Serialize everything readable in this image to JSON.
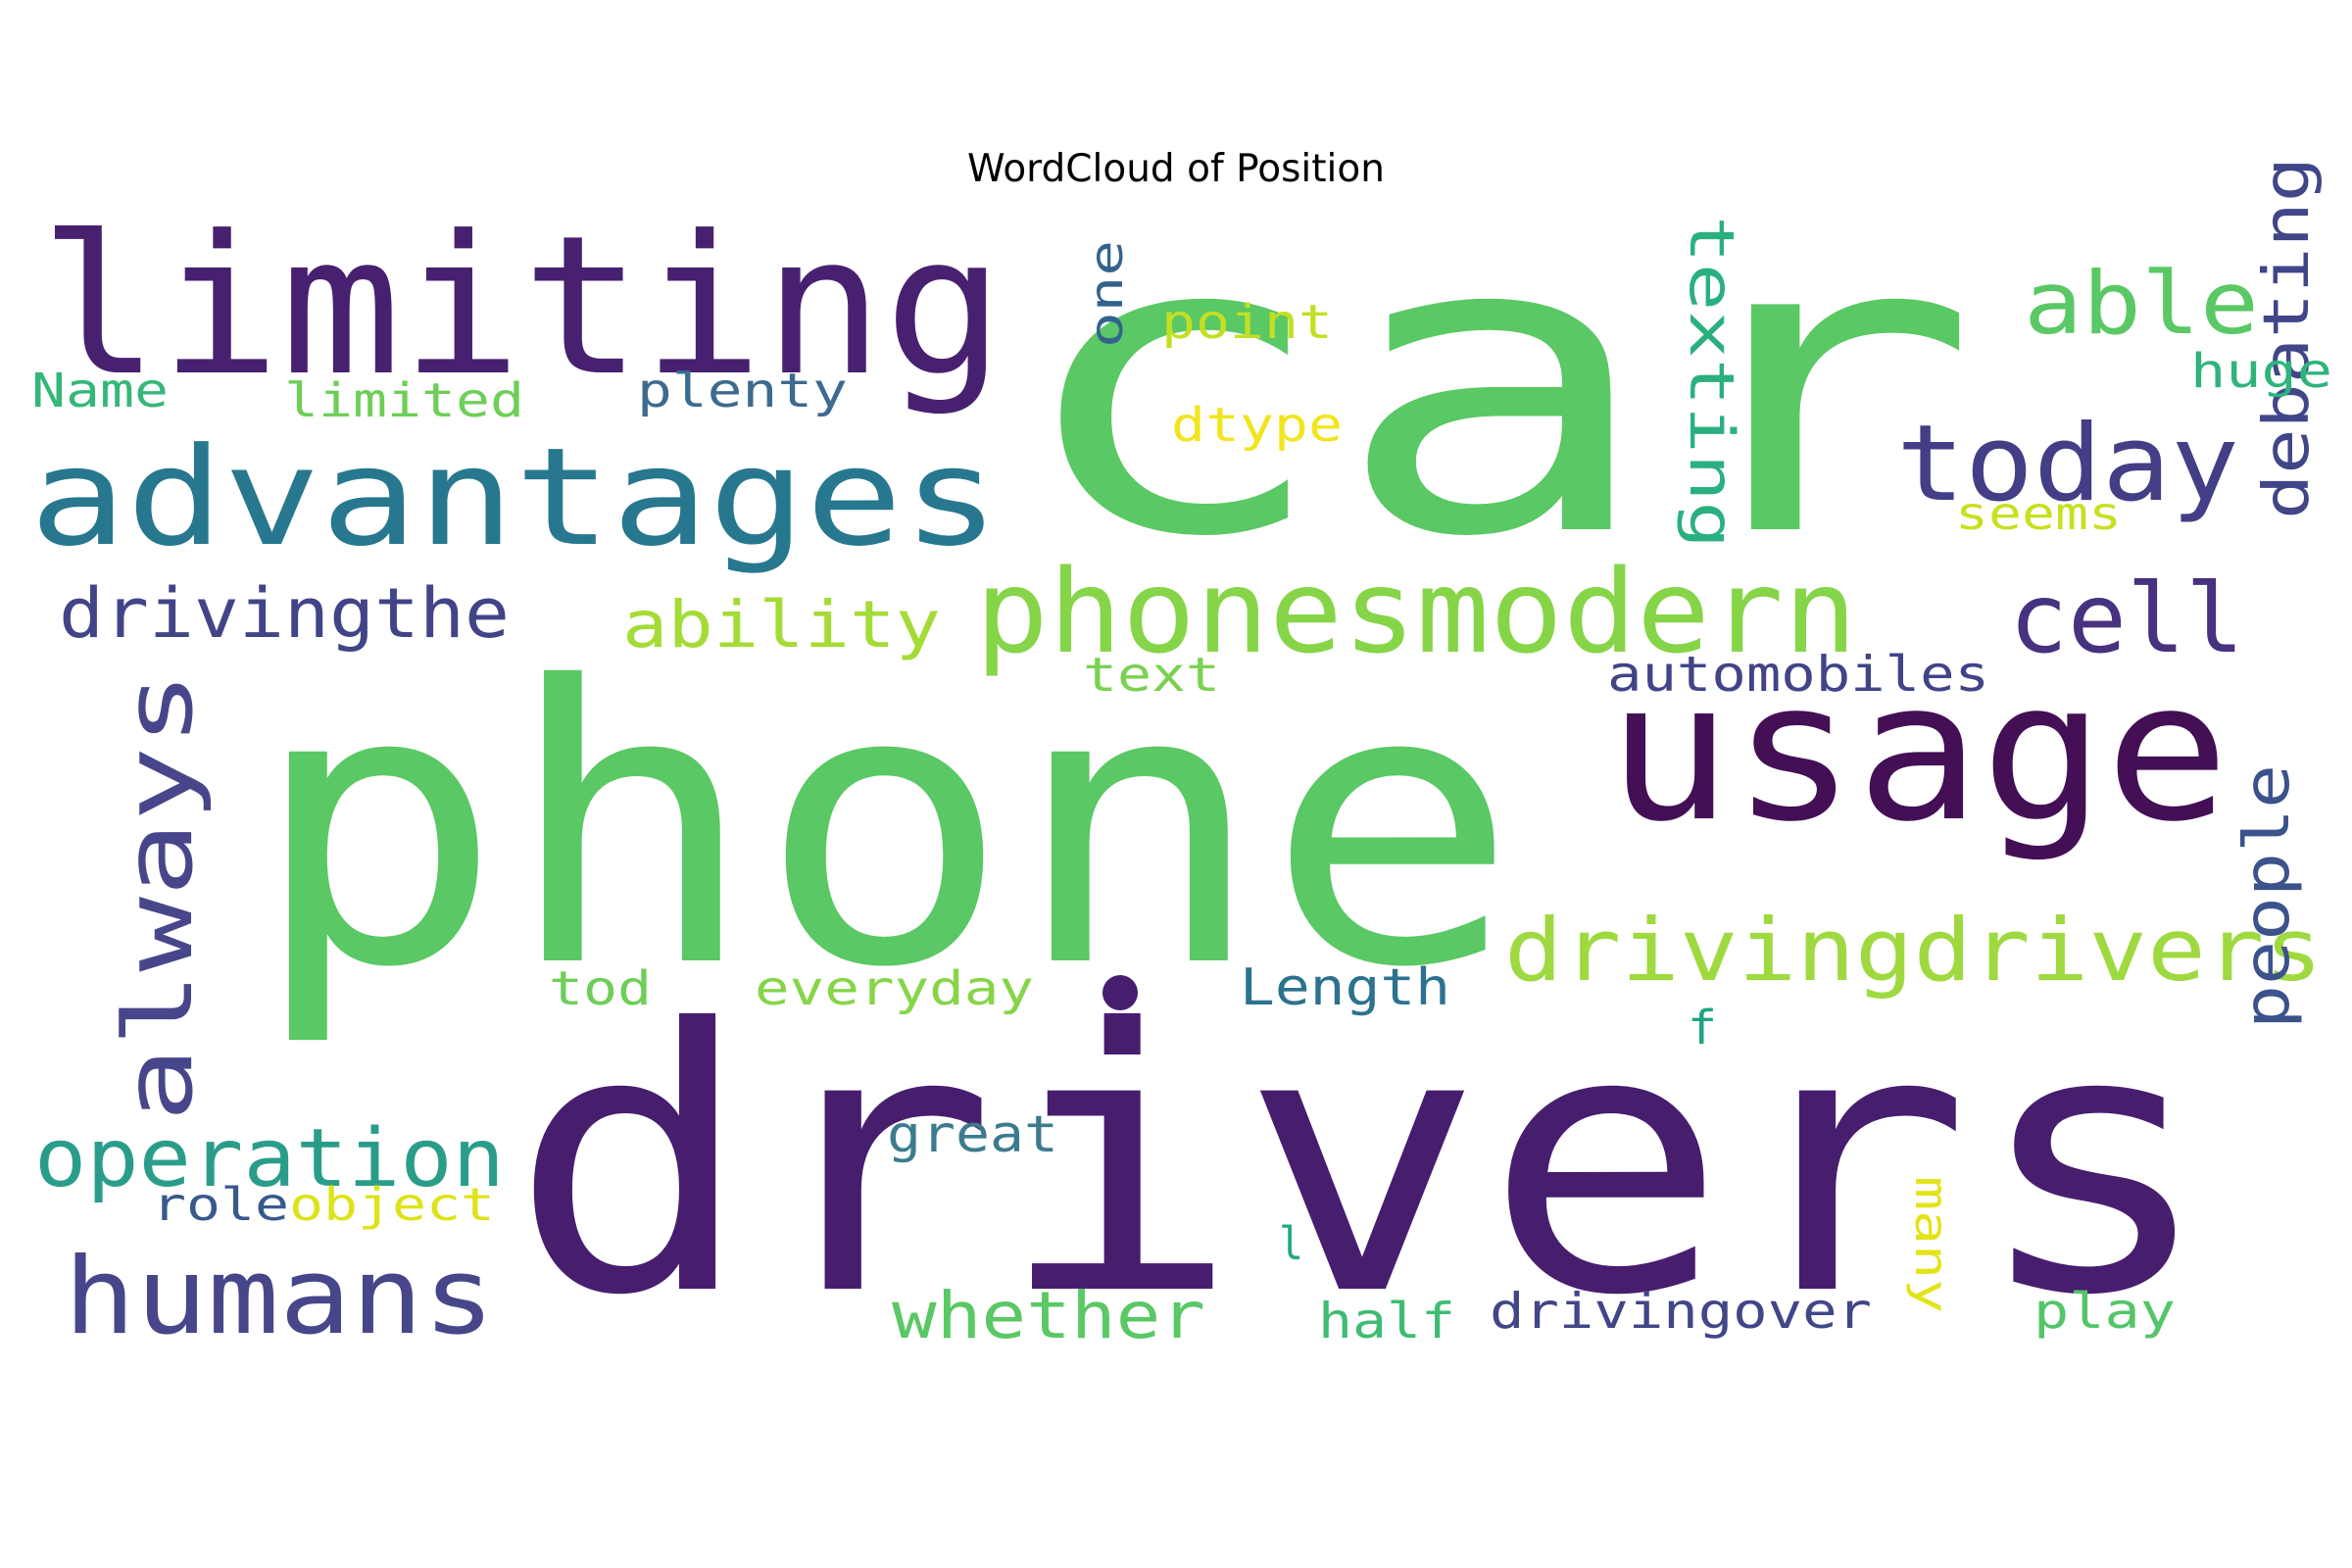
{
  "figure": {
    "title": "WordCloud of Position",
    "background": "#ffffff"
  },
  "palette": "viridis",
  "words": [
    {
      "text": "car",
      "color": "#5ac864"
    },
    {
      "text": "phone",
      "color": "#5ac864"
    },
    {
      "text": "drivers",
      "color": "#471e6e"
    },
    {
      "text": "limiting",
      "color": "#482070"
    },
    {
      "text": "advantages",
      "color": "#27788e"
    },
    {
      "text": "usage",
      "color": "#440f55"
    },
    {
      "text": "phonesmodern",
      "color": "#86d549"
    },
    {
      "text": "drivingdrivers",
      "color": "#9fd940"
    },
    {
      "text": "today",
      "color": "#433e85"
    },
    {
      "text": "cell",
      "color": "#46327e"
    },
    {
      "text": "humans",
      "color": "#48468a"
    },
    {
      "text": "operation",
      "color": "#2a9d8a"
    },
    {
      "text": "always",
      "color": "#48468a"
    },
    {
      "text": "able",
      "color": "#5ac864"
    },
    {
      "text": "texting",
      "color": "#2ab07f"
    },
    {
      "text": "debating",
      "color": "#404688"
    },
    {
      "text": "people",
      "color": "#3b528b"
    },
    {
      "text": "drivingthe",
      "color": "#414487"
    },
    {
      "text": "ability",
      "color": "#a5db36"
    },
    {
      "text": "whether",
      "color": "#5ac864"
    },
    {
      "text": "automobiles",
      "color": "#414487"
    },
    {
      "text": "point",
      "color": "#c2df23"
    },
    {
      "text": "dtype",
      "color": "#f1e51d"
    },
    {
      "text": "plenty",
      "color": "#3d6a8e"
    },
    {
      "text": "limited",
      "color": "#6ece58"
    },
    {
      "text": "Name",
      "color": "#35b779"
    },
    {
      "text": "huge",
      "color": "#2eb37c"
    },
    {
      "text": "seems",
      "color": "#c8e020"
    },
    {
      "text": "one",
      "color": "#33638d"
    },
    {
      "text": "text",
      "color": "#7ad151"
    },
    {
      "text": "tod",
      "color": "#6ece58"
    },
    {
      "text": "everyday",
      "color": "#86d549"
    },
    {
      "text": "Length",
      "color": "#2c728e"
    },
    {
      "text": "f",
      "color": "#20a386"
    },
    {
      "text": "great",
      "color": "#3b7b8d"
    },
    {
      "text": "role",
      "color": "#38598c"
    },
    {
      "text": "object",
      "color": "#dde318"
    },
    {
      "text": "l",
      "color": "#22a884"
    },
    {
      "text": "half",
      "color": "#3fbc73"
    },
    {
      "text": "drivingover",
      "color": "#404688"
    },
    {
      "text": "many",
      "color": "#e2e418"
    },
    {
      "text": "play",
      "color": "#54c568"
    }
  ],
  "dot_color": "#471e6e"
}
